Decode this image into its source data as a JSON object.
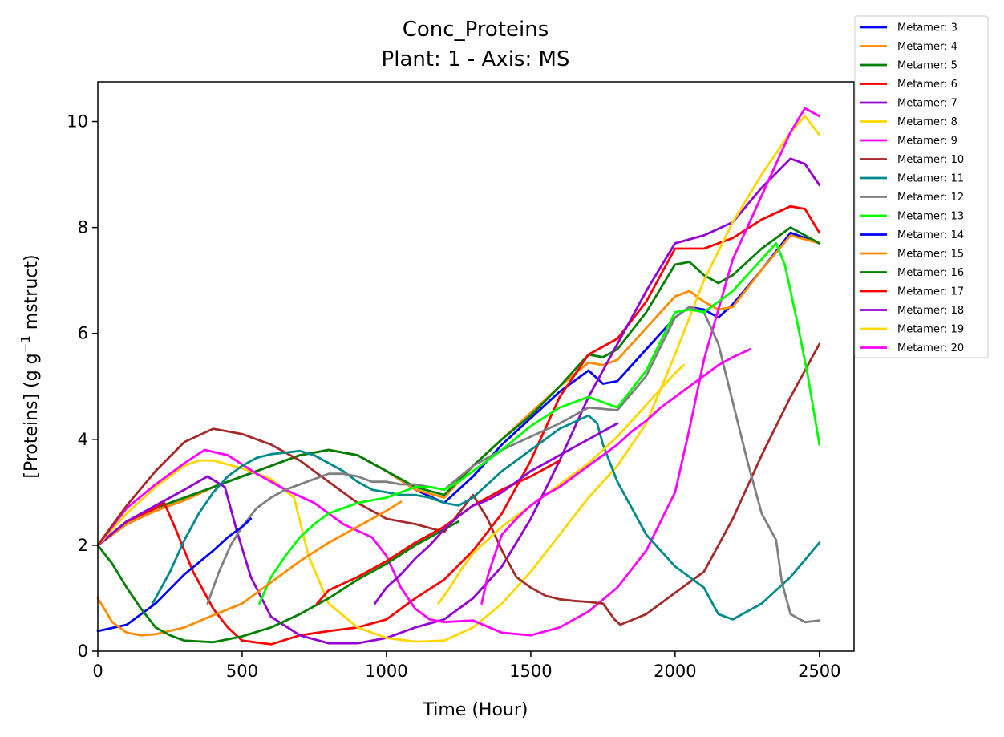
{
  "chart_data": {
    "type": "line",
    "title": "Conc_Proteins",
    "subtitle": "Plant: 1 - Axis: MS",
    "xlabel": "Time (Hour)",
    "ylabel_main": "[Proteins] (g g",
    "ylabel_sup": "−1",
    "ylabel_tail": " mstruct)",
    "xlim": [
      0,
      2620
    ],
    "ylim": [
      0,
      10.75
    ],
    "xticks": [
      0,
      500,
      1000,
      1500,
      2000,
      2500
    ],
    "xtick_labels": [
      "0",
      "500",
      "1000",
      "1500",
      "2000",
      "2500"
    ],
    "yticks": [
      0,
      2,
      4,
      6,
      8,
      10
    ],
    "ytick_labels": [
      "0",
      "2",
      "4",
      "6",
      "8",
      "10"
    ],
    "grid": false,
    "legend_position": "outside top-right",
    "series": [
      {
        "name": "Metamer: 3",
        "color": "#0000ff",
        "x": [
          0,
          100,
          200,
          300,
          400,
          500,
          600,
          700,
          800,
          900,
          1000,
          1100,
          1200,
          1300,
          1400,
          1500,
          1600,
          1700,
          1750,
          1800,
          1900,
          2000,
          2050,
          2100,
          2150,
          2200,
          2300,
          2400,
          2500
        ],
        "y": [
          2.0,
          2.4,
          2.65,
          2.85,
          3.1,
          3.3,
          3.5,
          3.7,
          3.8,
          3.7,
          3.4,
          3.05,
          2.8,
          3.3,
          3.9,
          4.4,
          4.9,
          5.3,
          5.05,
          5.1,
          5.7,
          6.3,
          6.5,
          6.45,
          6.3,
          6.55,
          7.2,
          7.9,
          7.7
        ]
      },
      {
        "name": "Metamer: 4",
        "color": "#ff8c00",
        "x": [
          0,
          100,
          200,
          300,
          400,
          500,
          600,
          700,
          800,
          900,
          1000,
          1100,
          1200,
          1300,
          1400,
          1500,
          1600,
          1700,
          1750,
          1800,
          1900,
          2000,
          2050,
          2100,
          2150,
          2200,
          2300,
          2400,
          2500
        ],
        "y": [
          2.0,
          2.4,
          2.65,
          2.85,
          3.1,
          3.3,
          3.5,
          3.7,
          3.8,
          3.7,
          3.4,
          3.05,
          2.9,
          3.5,
          4.0,
          4.5,
          5.0,
          5.45,
          5.4,
          5.5,
          6.1,
          6.7,
          6.8,
          6.6,
          6.45,
          6.5,
          7.2,
          7.85,
          7.7
        ]
      },
      {
        "name": "Metamer: 5",
        "color": "#008000",
        "x": [
          0,
          100,
          200,
          300,
          400,
          500,
          600,
          700,
          800,
          900,
          1000,
          1100,
          1200,
          1300,
          1400,
          1500,
          1600,
          1700,
          1750,
          1800,
          1900,
          2000,
          2050,
          2100,
          2150,
          2200,
          2300,
          2400,
          2500
        ],
        "y": [
          2.0,
          2.45,
          2.7,
          2.9,
          3.1,
          3.3,
          3.5,
          3.7,
          3.8,
          3.7,
          3.4,
          3.1,
          2.95,
          3.5,
          4.0,
          4.45,
          5.0,
          5.6,
          5.55,
          5.7,
          6.4,
          7.3,
          7.35,
          7.1,
          6.95,
          7.1,
          7.6,
          8.0,
          7.7
        ]
      },
      {
        "name": "Metamer: 6",
        "color": "#ff0000",
        "x": [
          0,
          100,
          200,
          230,
          270,
          330,
          400,
          450,
          500,
          600,
          700,
          800,
          900,
          1000,
          1100,
          1200,
          1300,
          1400,
          1500,
          1600,
          1700,
          1800,
          1900,
          2000,
          2100,
          2200,
          2300,
          2400,
          2450,
          2500
        ],
        "y": [
          2.0,
          2.45,
          2.7,
          2.8,
          2.3,
          1.5,
          0.8,
          0.45,
          0.2,
          0.13,
          0.3,
          0.38,
          0.45,
          0.6,
          1.0,
          1.35,
          1.9,
          2.6,
          3.6,
          4.8,
          5.6,
          5.9,
          6.6,
          7.6,
          7.6,
          7.8,
          8.15,
          8.4,
          8.35,
          7.9
        ]
      },
      {
        "name": "Metamer: 7",
        "color": "#9400d3",
        "x": [
          0,
          100,
          200,
          300,
          380,
          440,
          480,
          530,
          600,
          700,
          800,
          900,
          1000,
          1100,
          1200,
          1300,
          1400,
          1500,
          1600,
          1700,
          1800,
          1900,
          2000,
          2100,
          2200,
          2300,
          2400,
          2450,
          2500
        ],
        "y": [
          2.0,
          2.45,
          2.75,
          3.05,
          3.3,
          3.1,
          2.3,
          1.4,
          0.65,
          0.3,
          0.15,
          0.15,
          0.25,
          0.45,
          0.6,
          1.0,
          1.6,
          2.5,
          3.6,
          4.8,
          5.8,
          6.8,
          7.7,
          7.85,
          8.1,
          8.75,
          9.3,
          9.2,
          8.8
        ]
      },
      {
        "name": "Metamer: 8",
        "color": "#ffd700",
        "x": [
          0,
          100,
          200,
          300,
          350,
          400,
          500,
          600,
          680,
          730,
          800,
          900,
          1000,
          1100,
          1200,
          1300,
          1400,
          1500,
          1600,
          1700,
          1800,
          1900,
          2000,
          2100,
          2200,
          2300,
          2400,
          2450,
          2500
        ],
        "y": [
          2.0,
          2.6,
          3.1,
          3.5,
          3.6,
          3.6,
          3.45,
          3.25,
          2.9,
          1.8,
          0.9,
          0.45,
          0.25,
          0.18,
          0.2,
          0.45,
          0.9,
          1.5,
          2.2,
          2.9,
          3.5,
          4.3,
          5.6,
          7.0,
          8.1,
          9.0,
          9.8,
          10.1,
          9.75
        ]
      },
      {
        "name": "Metamer: 9",
        "color": "#ff00ff",
        "x": [
          0,
          100,
          200,
          300,
          370,
          450,
          550,
          650,
          750,
          850,
          950,
          1000,
          1050,
          1100,
          1150,
          1200,
          1300,
          1400,
          1500,
          1600,
          1700,
          1800,
          1900,
          2000,
          2050,
          2100,
          2200,
          2300,
          2400,
          2450,
          2500
        ],
        "y": [
          2.0,
          2.7,
          3.15,
          3.55,
          3.8,
          3.7,
          3.35,
          3.05,
          2.8,
          2.4,
          2.15,
          1.8,
          1.2,
          0.8,
          0.6,
          0.55,
          0.58,
          0.35,
          0.3,
          0.45,
          0.75,
          1.2,
          1.9,
          3.0,
          4.2,
          5.5,
          7.4,
          8.6,
          9.8,
          10.25,
          10.1
        ]
      },
      {
        "name": "Metamer: 10",
        "color": "#a52a2a",
        "x": [
          0,
          100,
          200,
          300,
          400,
          500,
          600,
          700,
          800,
          900,
          1000,
          1100,
          1200,
          1300,
          1350,
          1400,
          1450,
          1500,
          1550,
          1600,
          1650,
          1700,
          1750,
          1790,
          1810,
          1900,
          2000,
          2100,
          2200,
          2300,
          2400,
          2500
        ],
        "y": [
          2.0,
          2.75,
          3.4,
          3.95,
          4.2,
          4.1,
          3.9,
          3.6,
          3.2,
          2.8,
          2.5,
          2.4,
          2.25,
          2.95,
          2.5,
          1.9,
          1.4,
          1.2,
          1.05,
          0.98,
          0.95,
          0.93,
          0.9,
          0.6,
          0.5,
          0.7,
          1.1,
          1.5,
          2.5,
          3.7,
          4.8,
          5.8
        ]
      },
      {
        "name": "Metamer: 11",
        "color": "#008b8b",
        "x": [
          190,
          250,
          300,
          350,
          400,
          450,
          500,
          550,
          600,
          650,
          700,
          750,
          800,
          850,
          900,
          950,
          1000,
          1050,
          1100,
          1150,
          1200,
          1250,
          1300,
          1400,
          1500,
          1600,
          1700,
          1730,
          1750,
          1800,
          1850,
          1900,
          2000,
          2050,
          2100,
          2150,
          2200,
          2300,
          2400,
          2500
        ],
        "y": [
          0.9,
          1.5,
          2.1,
          2.6,
          3.0,
          3.3,
          3.5,
          3.65,
          3.72,
          3.75,
          3.78,
          3.7,
          3.55,
          3.4,
          3.2,
          3.05,
          3.0,
          2.95,
          2.95,
          2.9,
          2.8,
          2.75,
          2.9,
          3.4,
          3.8,
          4.2,
          4.45,
          4.3,
          3.9,
          3.2,
          2.7,
          2.2,
          1.6,
          1.4,
          1.2,
          0.7,
          0.6,
          0.9,
          1.4,
          2.05
        ]
      },
      {
        "name": "Metamer: 12",
        "color": "#808080",
        "x": [
          380,
          420,
          460,
          500,
          550,
          600,
          650,
          700,
          750,
          800,
          850,
          900,
          950,
          1000,
          1050,
          1100,
          1150,
          1200,
          1300,
          1400,
          1500,
          1600,
          1700,
          1800,
          1900,
          2000,
          2050,
          2100,
          2150,
          2200,
          2250,
          2300,
          2350,
          2370,
          2400,
          2450,
          2500
        ],
        "y": [
          0.9,
          1.5,
          2.0,
          2.35,
          2.7,
          2.9,
          3.05,
          3.15,
          3.25,
          3.35,
          3.35,
          3.3,
          3.2,
          3.2,
          3.15,
          3.15,
          3.1,
          3.05,
          3.5,
          3.8,
          4.05,
          4.3,
          4.6,
          4.55,
          5.2,
          6.3,
          6.5,
          6.4,
          5.8,
          4.7,
          3.6,
          2.6,
          2.1,
          1.3,
          0.7,
          0.55,
          0.58
        ]
      },
      {
        "name": "Metamer: 13",
        "color": "#00ff00",
        "x": [
          560,
          600,
          650,
          700,
          750,
          800,
          850,
          900,
          950,
          1000,
          1050,
          1100,
          1150,
          1200,
          1250,
          1300,
          1400,
          1500,
          1600,
          1700,
          1750,
          1800,
          1900,
          2000,
          2050,
          2100,
          2200,
          2300,
          2350,
          2380,
          2420,
          2460,
          2500
        ],
        "y": [
          0.9,
          1.4,
          1.8,
          2.15,
          2.4,
          2.6,
          2.7,
          2.8,
          2.85,
          2.9,
          3.0,
          3.1,
          3.1,
          3.05,
          3.2,
          3.4,
          3.8,
          4.25,
          4.6,
          4.8,
          4.7,
          4.6,
          5.3,
          6.4,
          6.45,
          6.4,
          6.8,
          7.4,
          7.7,
          7.3,
          6.3,
          5.2,
          3.9
        ]
      },
      {
        "name": "Metamer: 14",
        "color": "#0000ff",
        "x": [
          0,
          100,
          200,
          300,
          400,
          450,
          500,
          530
        ],
        "y": [
          0.38,
          0.5,
          0.9,
          1.45,
          1.9,
          2.15,
          2.35,
          2.5
        ]
      },
      {
        "name": "Metamer: 15",
        "color": "#ff8c00",
        "x": [
          0,
          50,
          100,
          150,
          200,
          300,
          400,
          500,
          600,
          700,
          800,
          900,
          950,
          1000,
          1050
        ],
        "y": [
          1.0,
          0.55,
          0.35,
          0.3,
          0.32,
          0.45,
          0.68,
          0.9,
          1.3,
          1.7,
          2.05,
          2.35,
          2.5,
          2.65,
          2.82
        ]
      },
      {
        "name": "Metamer: 16",
        "color": "#008000",
        "x": [
          0,
          50,
          100,
          150,
          200,
          250,
          300,
          400,
          500,
          600,
          700,
          800,
          900,
          1000,
          1100,
          1200,
          1250
        ],
        "y": [
          2.0,
          1.65,
          1.2,
          0.8,
          0.45,
          0.3,
          0.2,
          0.17,
          0.28,
          0.45,
          0.7,
          1.0,
          1.35,
          1.65,
          2.0,
          2.3,
          2.45
        ]
      },
      {
        "name": "Metamer: 17",
        "color": "#ff0000",
        "x": [
          760,
          800,
          900,
          1000,
          1100,
          1200,
          1300,
          1400,
          1500,
          1550,
          1600
        ],
        "y": [
          0.9,
          1.15,
          1.4,
          1.7,
          2.05,
          2.35,
          2.75,
          3.05,
          3.3,
          3.45,
          3.6
        ]
      },
      {
        "name": "Metamer: 18",
        "color": "#9400d3",
        "x": [
          960,
          1000,
          1050,
          1100,
          1150,
          1200,
          1250,
          1300,
          1350,
          1400,
          1450,
          1500,
          1550,
          1600,
          1650,
          1700,
          1750,
          1800
        ],
        "y": [
          0.9,
          1.2,
          1.45,
          1.75,
          2.0,
          2.3,
          2.55,
          2.75,
          2.85,
          3.0,
          3.2,
          3.4,
          3.55,
          3.7,
          3.85,
          4.0,
          4.15,
          4.3
        ]
      },
      {
        "name": "Metamer: 19",
        "color": "#ffd700",
        "x": [
          1180,
          1220,
          1260,
          1300,
          1350,
          1400,
          1450,
          1500,
          1550,
          1600,
          1650,
          1700,
          1750,
          1800,
          1850,
          1900,
          1950,
          2000,
          2030
        ],
        "y": [
          0.9,
          1.2,
          1.55,
          1.85,
          2.1,
          2.35,
          2.55,
          2.75,
          2.95,
          3.15,
          3.35,
          3.55,
          3.8,
          4.05,
          4.35,
          4.65,
          4.95,
          5.25,
          5.4
        ]
      },
      {
        "name": "Metamer: 20",
        "color": "#ff00ff",
        "x": [
          1330,
          1350,
          1380,
          1400,
          1450,
          1500,
          1550,
          1600,
          1650,
          1700,
          1750,
          1800,
          1850,
          1900,
          1950,
          2000,
          2050,
          2100,
          2150,
          2200,
          2260
        ],
        "y": [
          0.9,
          1.4,
          1.9,
          2.2,
          2.5,
          2.75,
          2.95,
          3.1,
          3.3,
          3.5,
          3.7,
          3.9,
          4.15,
          4.35,
          4.6,
          4.8,
          5.0,
          5.2,
          5.4,
          5.55,
          5.7
        ]
      }
    ]
  }
}
